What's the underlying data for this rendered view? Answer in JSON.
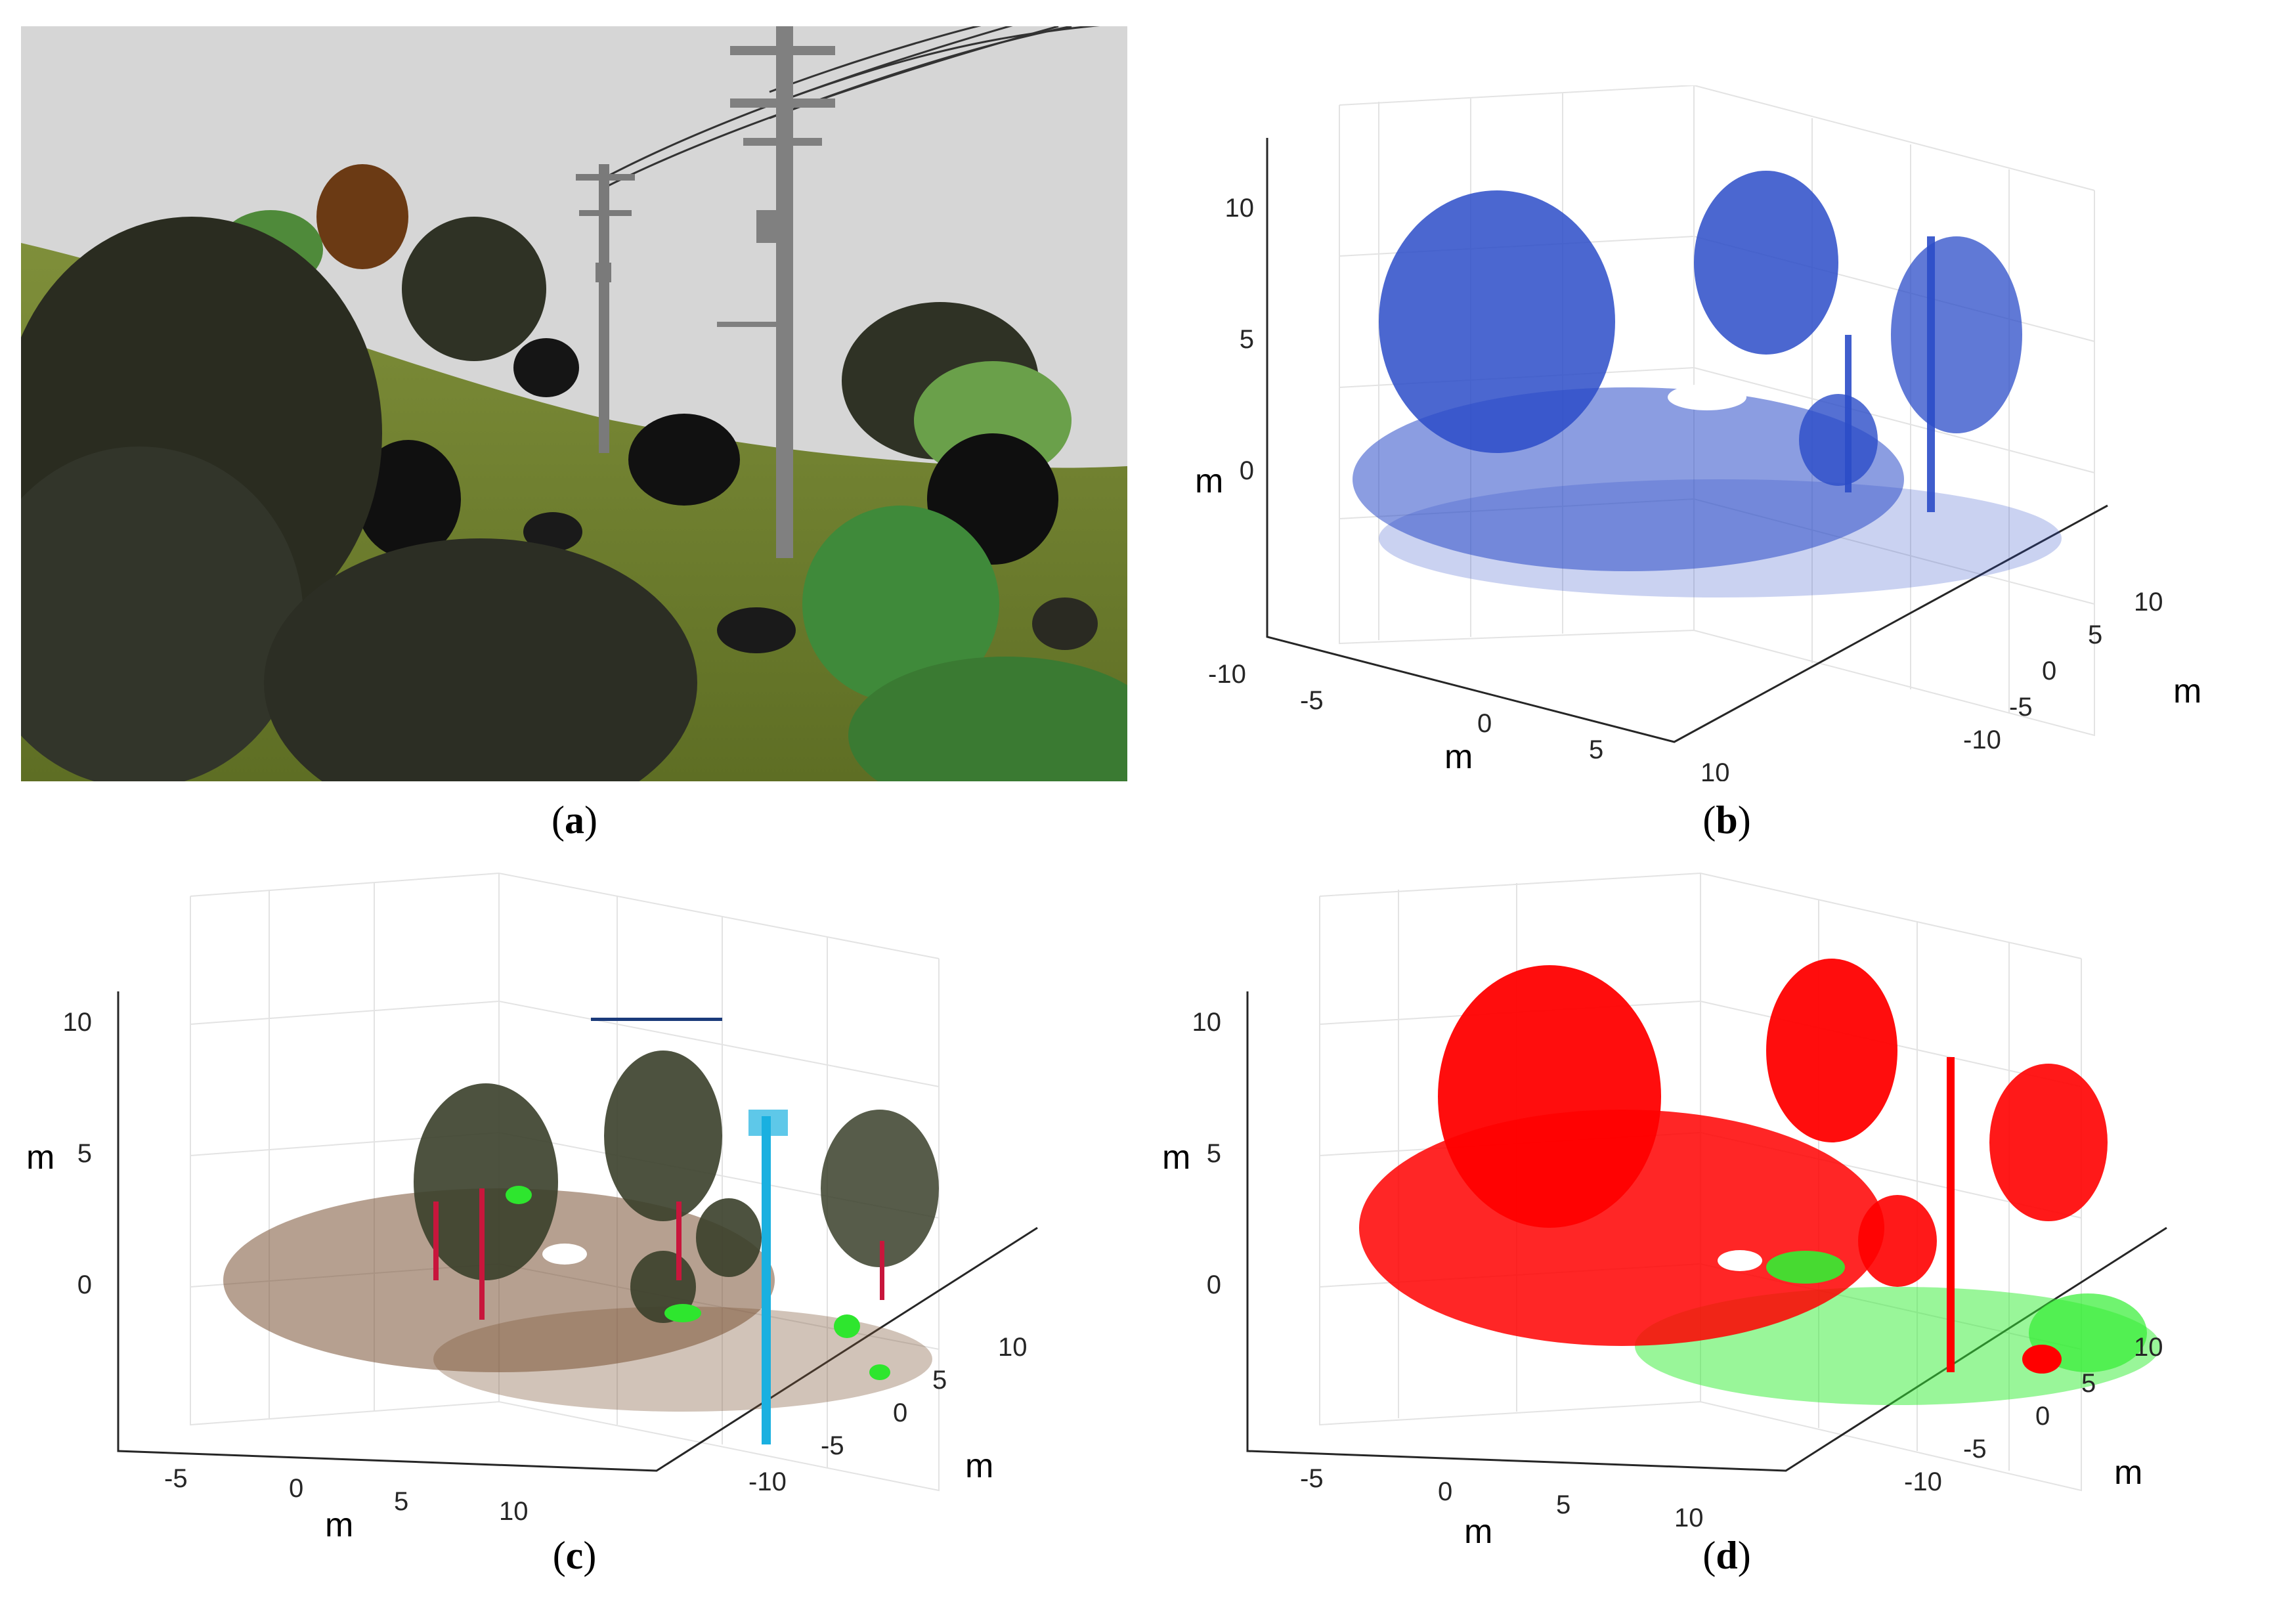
{
  "figure": {
    "panels": [
      {
        "id": "a",
        "caption": "a",
        "content": "rendered forest scene with utility poles"
      },
      {
        "id": "b",
        "caption": "b",
        "point_color": "#2b4cc8"
      },
      {
        "id": "c",
        "caption": "c",
        "colors": {
          "ground": "#7a5234",
          "foliage": "#3a3f2a",
          "trunk": "#c8163c",
          "pole": "#1ab0e0",
          "shrub": "#2ee62e",
          "wire": "#1a3a7a"
        }
      },
      {
        "id": "d",
        "caption": "d",
        "colors": {
          "class_a": "#ff0000",
          "class_b": "#33ee33"
        }
      }
    ]
  },
  "axes": {
    "b": {
      "z_ticks": [
        "10",
        "5",
        "0"
      ],
      "z_label": "m",
      "x_ticks": [
        "-10",
        "-5",
        "0",
        "5",
        "10"
      ],
      "x_label": "m",
      "y_ticks": [
        "-10",
        "-5",
        "0",
        "5",
        "10"
      ],
      "y_label": "m"
    },
    "c": {
      "z_ticks": [
        "10",
        "5",
        "0"
      ],
      "z_label": "m",
      "x_ticks": [
        "-5",
        "0",
        "5",
        "10"
      ],
      "x_label": "m",
      "y_ticks": [
        "-10",
        "-5",
        "0",
        "5",
        "10"
      ],
      "y_label": "m"
    },
    "d": {
      "z_ticks": [
        "10",
        "5",
        "0"
      ],
      "z_label": "m",
      "x_ticks": [
        "-5",
        "0",
        "5",
        "10"
      ],
      "x_label": "m",
      "y_ticks": [
        "-10",
        "-5",
        "0",
        "5",
        "10"
      ],
      "y_label": "m"
    }
  }
}
